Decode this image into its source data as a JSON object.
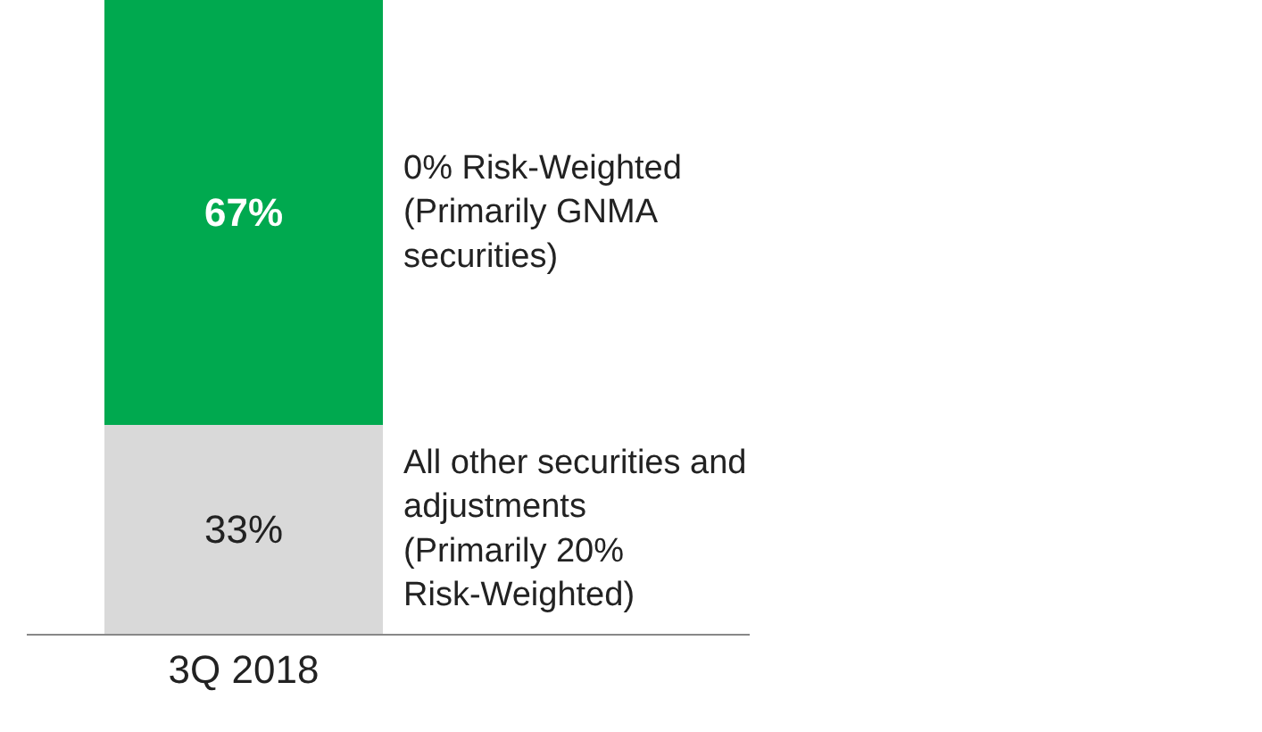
{
  "chart_data": {
    "type": "bar",
    "stacked": true,
    "categories": [
      "3Q 2018"
    ],
    "series": [
      {
        "name": "All other securities and\nadjustments\n(Primarily 20%\nRisk-Weighted)",
        "color": "#d9d9d9",
        "values": [
          33
        ],
        "value_labels": [
          "33%"
        ]
      },
      {
        "name": "0% Risk-Weighted\n(Primarily GNMA\nsecurities)",
        "color": "#00a94f",
        "values": [
          67
        ],
        "value_labels": [
          "67%"
        ]
      }
    ]
  }
}
